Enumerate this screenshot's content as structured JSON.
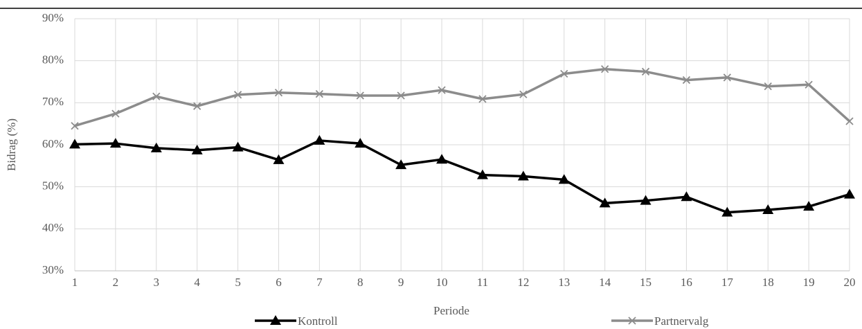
{
  "chart_data": {
    "type": "line",
    "x_label": "Periode",
    "y_label": "Bidrag (%)",
    "x": [
      1,
      2,
      3,
      4,
      5,
      6,
      7,
      8,
      9,
      10,
      11,
      12,
      13,
      14,
      15,
      16,
      17,
      18,
      19,
      20
    ],
    "xlim": [
      1,
      20
    ],
    "xticks": [
      1,
      2,
      3,
      4,
      5,
      6,
      7,
      8,
      9,
      10,
      11,
      12,
      13,
      14,
      15,
      16,
      17,
      18,
      19,
      20
    ],
    "ylim": [
      30,
      90
    ],
    "yticks": [
      {
        "value": 30,
        "label": "30%"
      },
      {
        "value": 40,
        "label": "40%"
      },
      {
        "value": 50,
        "label": "50%"
      },
      {
        "value": 60,
        "label": "60%"
      },
      {
        "value": 70,
        "label": "70%"
      },
      {
        "value": 80,
        "label": "80%"
      },
      {
        "value": 90,
        "label": "90%"
      }
    ],
    "grid": true,
    "legend": "bottom",
    "series": [
      {
        "name": "Kontroll",
        "color": "#000000",
        "marker": "triangle",
        "values": [
          60.1,
          60.3,
          59.2,
          58.7,
          59.4,
          56.4,
          61.0,
          60.3,
          55.2,
          56.5,
          52.8,
          52.5,
          51.7,
          46.1,
          46.7,
          47.6,
          43.9,
          44.5,
          45.3,
          48.2
        ]
      },
      {
        "name": "Partnervalg",
        "color": "#8c8c8c",
        "marker": "x",
        "values": [
          64.5,
          67.4,
          71.5,
          69.2,
          71.9,
          72.4,
          72.1,
          71.7,
          71.7,
          73.0,
          70.9,
          72.0,
          76.9,
          78.0,
          77.4,
          75.4,
          76.0,
          73.9,
          74.3,
          65.6
        ]
      }
    ]
  }
}
